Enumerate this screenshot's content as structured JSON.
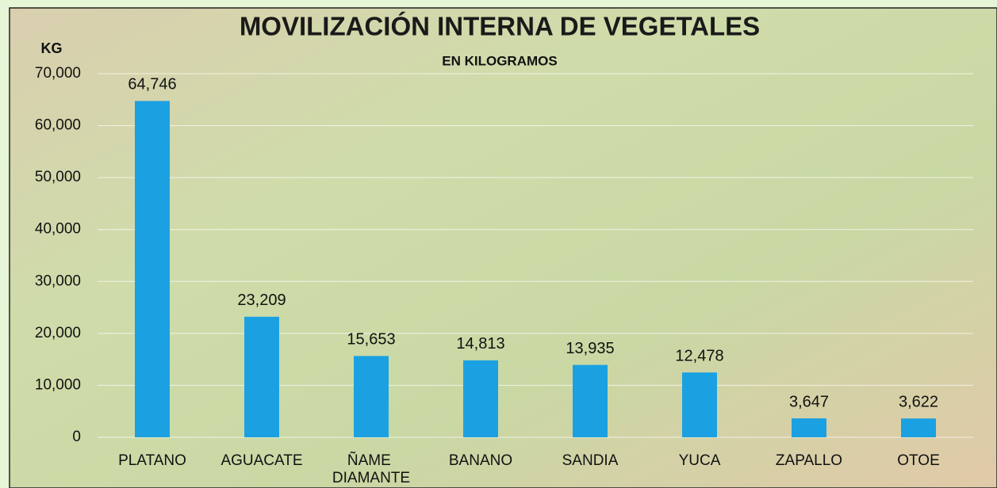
{
  "chart_data": {
    "type": "bar",
    "title": "MOVILIZACIÓN INTERNA DE VEGETALES",
    "subtitle": "EN KILOGRAMOS",
    "y_label": "KG",
    "categories": [
      "PLATANO",
      "AGUACATE",
      "ÑAME DIAMANTE",
      "BANANO",
      "SANDIA",
      "YUCA",
      "ZAPALLO",
      "OTOE"
    ],
    "values": [
      64746,
      23209,
      15653,
      14813,
      13935,
      12478,
      3647,
      3622
    ],
    "value_labels": [
      "64,746",
      "23,209",
      "15,653",
      "14,813",
      "13,935",
      "12,478",
      "3,647",
      "3,622"
    ],
    "color": "#1ba1e2",
    "ylim": [
      0,
      70000
    ],
    "yticks": [
      0,
      {
        "value": 10000,
        "label": "10,000"
      },
      {
        "value": 20000,
        "label": "20,000"
      },
      {
        "value": 30000,
        "label": "30,000"
      },
      {
        "value": 40000,
        "label": "40,000"
      },
      {
        "value": 50000,
        "label": "50,000"
      },
      {
        "value": 60000,
        "label": "60,000"
      },
      {
        "value": 70000,
        "label": "70,000"
      }
    ],
    "grid": true
  }
}
